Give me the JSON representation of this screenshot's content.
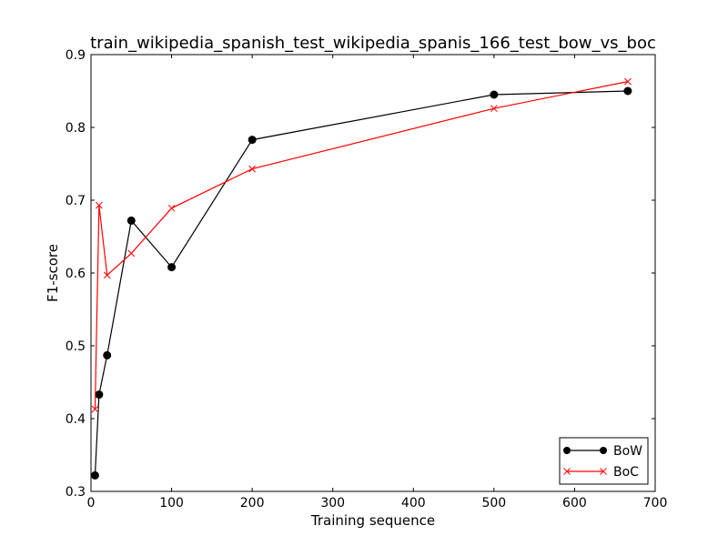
{
  "chart_data": {
    "type": "line",
    "title": "train_wikipedia_spanish_test_wikipedia_spanis_166_test_bow_vs_boc",
    "xlabel": "Training sequence",
    "ylabel": "F1-score",
    "xlim": [
      0,
      700
    ],
    "ylim": [
      0.3,
      0.9
    ],
    "xticks": [
      "0",
      "100",
      "200",
      "300",
      "400",
      "500",
      "600",
      "700"
    ],
    "yticks": [
      "0.3",
      "0.4",
      "0.5",
      "0.6",
      "0.7",
      "0.8",
      "0.9"
    ],
    "grid": false,
    "legend_position": "lower-right",
    "series": [
      {
        "name": "BoW",
        "color": "#000000",
        "marker": "circle",
        "x": [
          5,
          10,
          20,
          50,
          100,
          200,
          500,
          666
        ],
        "y": [
          0.322,
          0.433,
          0.487,
          0.672,
          0.608,
          0.783,
          0.845,
          0.85
        ]
      },
      {
        "name": "BoC",
        "color": "#ff0000",
        "marker": "x",
        "x": [
          5,
          10,
          20,
          50,
          100,
          200,
          500,
          666
        ],
        "y": [
          0.413,
          0.693,
          0.597,
          0.627,
          0.689,
          0.743,
          0.826,
          0.863
        ]
      }
    ]
  }
}
